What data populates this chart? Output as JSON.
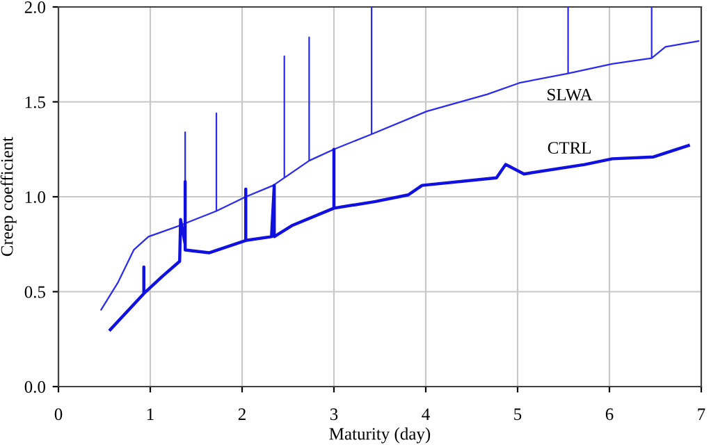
{
  "chart_data": {
    "type": "line",
    "xlabel": "Maturity (day)",
    "ylabel": "Creep coefficient",
    "xlim": [
      0,
      7
    ],
    "ylim": [
      0,
      2.0
    ],
    "xticks": [
      0,
      1,
      2,
      3,
      4,
      5,
      6,
      7
    ],
    "yticks": [
      {
        "value": 0,
        "label": "0.0"
      },
      {
        "value": 0.5,
        "label": "0.5"
      },
      {
        "value": 1.0,
        "label": "1.0"
      },
      {
        "value": 1.5,
        "label": "1.5"
      },
      {
        "value": 2.0,
        "label": "2.0"
      }
    ],
    "grid": true,
    "legend": false,
    "marker": "none",
    "line_style": "solid",
    "series": [
      {
        "name": "SLWA",
        "color": "#2a2af0",
        "x": [
          0.465,
          0.65,
          0.82,
          0.98,
          1.33,
          1.38,
          1.38,
          1.38,
          1.72,
          1.72,
          1.72,
          2.04,
          2.34,
          2.46,
          2.46,
          2.46,
          2.73,
          2.73,
          2.73,
          3.0,
          3.41,
          3.41,
          3.41,
          4.01,
          4.67,
          5.02,
          5.55,
          5.55,
          5.55,
          6.03,
          6.46,
          6.46,
          6.46,
          6.61,
          6.97
        ],
        "values": [
          0.405,
          0.55,
          0.72,
          0.79,
          0.85,
          0.86,
          1.34,
          0.86,
          0.925,
          1.44,
          0.925,
          1.0,
          1.06,
          1.1,
          1.74,
          1.1,
          1.19,
          1.84,
          1.19,
          1.25,
          1.33,
          2.0,
          1.33,
          1.45,
          1.54,
          1.6,
          1.65,
          2.0,
          1.65,
          1.7,
          1.73,
          2.0,
          1.73,
          1.79,
          1.82
        ]
      },
      {
        "name": "CTRL",
        "color": "#1010e0",
        "x": [
          0.565,
          0.93,
          0.93,
          0.93,
          1.13,
          1.32,
          1.33,
          1.38,
          1.38,
          1.38,
          1.64,
          2.04,
          2.04,
          2.04,
          2.32,
          2.35,
          2.35,
          2.55,
          3.0,
          3.0,
          3.0,
          3.45,
          3.81,
          3.96,
          4.77,
          4.87,
          5.07,
          5.73,
          6.03,
          6.48,
          6.86
        ],
        "values": [
          0.3,
          0.49,
          0.63,
          0.49,
          0.58,
          0.66,
          0.88,
          0.75,
          1.08,
          0.72,
          0.705,
          0.77,
          1.04,
          0.77,
          0.79,
          1.06,
          0.79,
          0.85,
          0.94,
          1.25,
          0.94,
          0.975,
          1.01,
          1.06,
          1.1,
          1.17,
          1.12,
          1.17,
          1.2,
          1.21,
          1.27
        ]
      }
    ]
  }
}
